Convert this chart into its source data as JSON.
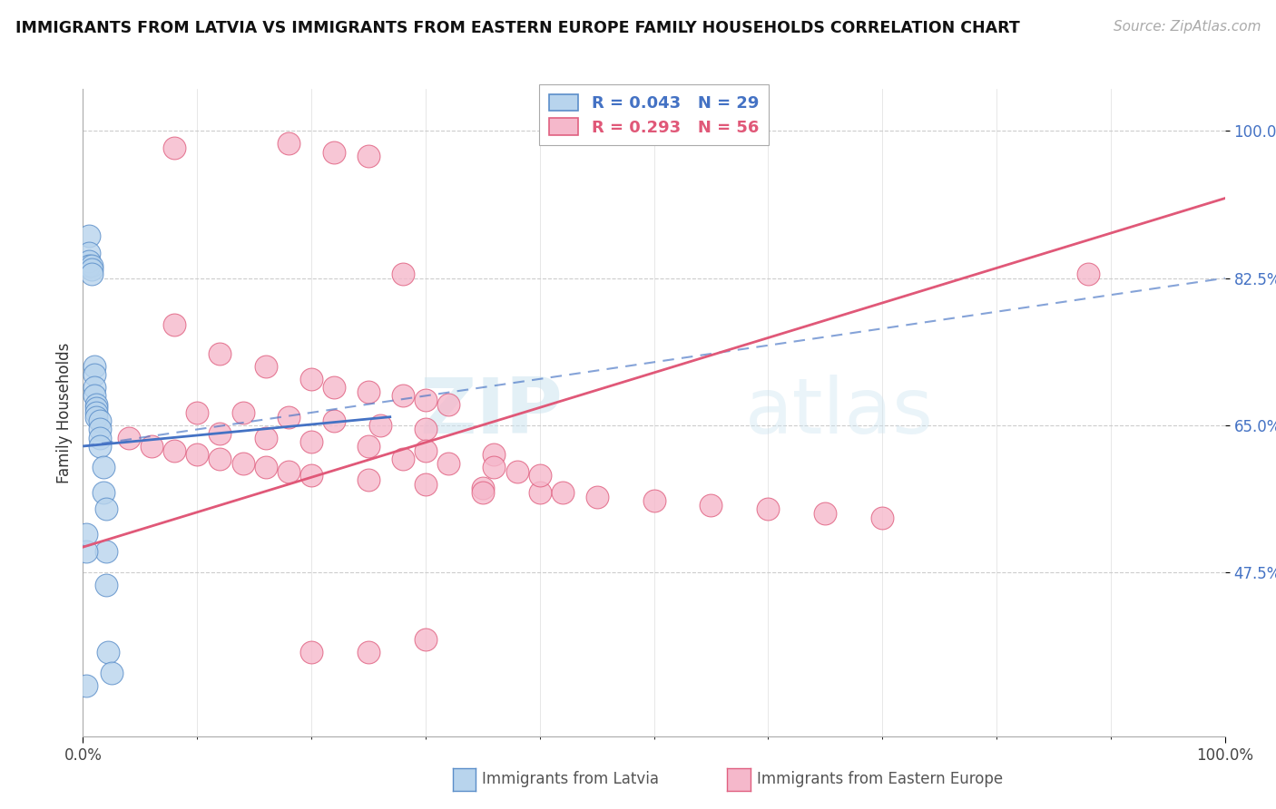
{
  "title": "IMMIGRANTS FROM LATVIA VS IMMIGRANTS FROM EASTERN EUROPE FAMILY HOUSEHOLDS CORRELATION CHART",
  "source": "Source: ZipAtlas.com",
  "ylabel": "Family Households",
  "legend_label_1": "Immigrants from Latvia",
  "legend_label_2": "Immigrants from Eastern Europe",
  "r1": 0.043,
  "n1": 29,
  "r2": 0.293,
  "n2": 56,
  "color1_fill": "#b8d4ed",
  "color1_edge": "#5b8ec9",
  "color2_fill": "#f5b8cb",
  "color2_edge": "#e06080",
  "line_color1": "#4472c4",
  "line_color2": "#e05878",
  "xmin": 0.0,
  "xmax": 1.0,
  "ymin": 0.28,
  "ymax": 1.05,
  "yticks": [
    0.475,
    0.65,
    0.825,
    1.0
  ],
  "ytick_labels": [
    "47.5%",
    "65.0%",
    "82.5%",
    "100.0%"
  ],
  "watermark_zip": "ZIP",
  "watermark_atlas": "atlas",
  "latvia_x": [
    0.005,
    0.005,
    0.005,
    0.005,
    0.008,
    0.008,
    0.008,
    0.01,
    0.01,
    0.01,
    0.01,
    0.012,
    0.012,
    0.012,
    0.012,
    0.015,
    0.015,
    0.015,
    0.015,
    0.018,
    0.018,
    0.02,
    0.02,
    0.02,
    0.022,
    0.025,
    0.003,
    0.003,
    0.003
  ],
  "latvia_y": [
    0.875,
    0.855,
    0.845,
    0.84,
    0.84,
    0.835,
    0.83,
    0.72,
    0.71,
    0.695,
    0.685,
    0.675,
    0.67,
    0.665,
    0.66,
    0.655,
    0.645,
    0.635,
    0.625,
    0.6,
    0.57,
    0.55,
    0.5,
    0.46,
    0.38,
    0.355,
    0.34,
    0.5,
    0.52
  ],
  "eastern_x": [
    0.08,
    0.18,
    0.22,
    0.25,
    0.28,
    0.08,
    0.12,
    0.16,
    0.2,
    0.22,
    0.25,
    0.28,
    0.3,
    0.32,
    0.1,
    0.14,
    0.18,
    0.22,
    0.26,
    0.3,
    0.12,
    0.16,
    0.2,
    0.25,
    0.3,
    0.36,
    0.28,
    0.32,
    0.36,
    0.38,
    0.04,
    0.06,
    0.08,
    0.1,
    0.12,
    0.14,
    0.16,
    0.18,
    0.2,
    0.25,
    0.3,
    0.35,
    0.4,
    0.45,
    0.5,
    0.55,
    0.6,
    0.65,
    0.7,
    0.88,
    0.2,
    0.25,
    0.3,
    0.35,
    0.4,
    0.42
  ],
  "eastern_y": [
    0.98,
    0.985,
    0.975,
    0.97,
    0.83,
    0.77,
    0.735,
    0.72,
    0.705,
    0.695,
    0.69,
    0.685,
    0.68,
    0.675,
    0.665,
    0.665,
    0.66,
    0.655,
    0.65,
    0.645,
    0.64,
    0.635,
    0.63,
    0.625,
    0.62,
    0.615,
    0.61,
    0.605,
    0.6,
    0.595,
    0.635,
    0.625,
    0.62,
    0.615,
    0.61,
    0.605,
    0.6,
    0.595,
    0.59,
    0.585,
    0.58,
    0.575,
    0.57,
    0.565,
    0.56,
    0.555,
    0.55,
    0.545,
    0.54,
    0.83,
    0.38,
    0.38,
    0.395,
    0.57,
    0.59,
    0.57
  ],
  "blue_line_x": [
    0.0,
    0.27
  ],
  "blue_line_y": [
    0.625,
    0.66
  ],
  "pink_line_x": [
    0.0,
    1.0
  ],
  "pink_line_y": [
    0.505,
    0.92
  ],
  "dashed_line_x": [
    0.0,
    1.0
  ],
  "dashed_line_y": [
    0.625,
    0.825
  ]
}
